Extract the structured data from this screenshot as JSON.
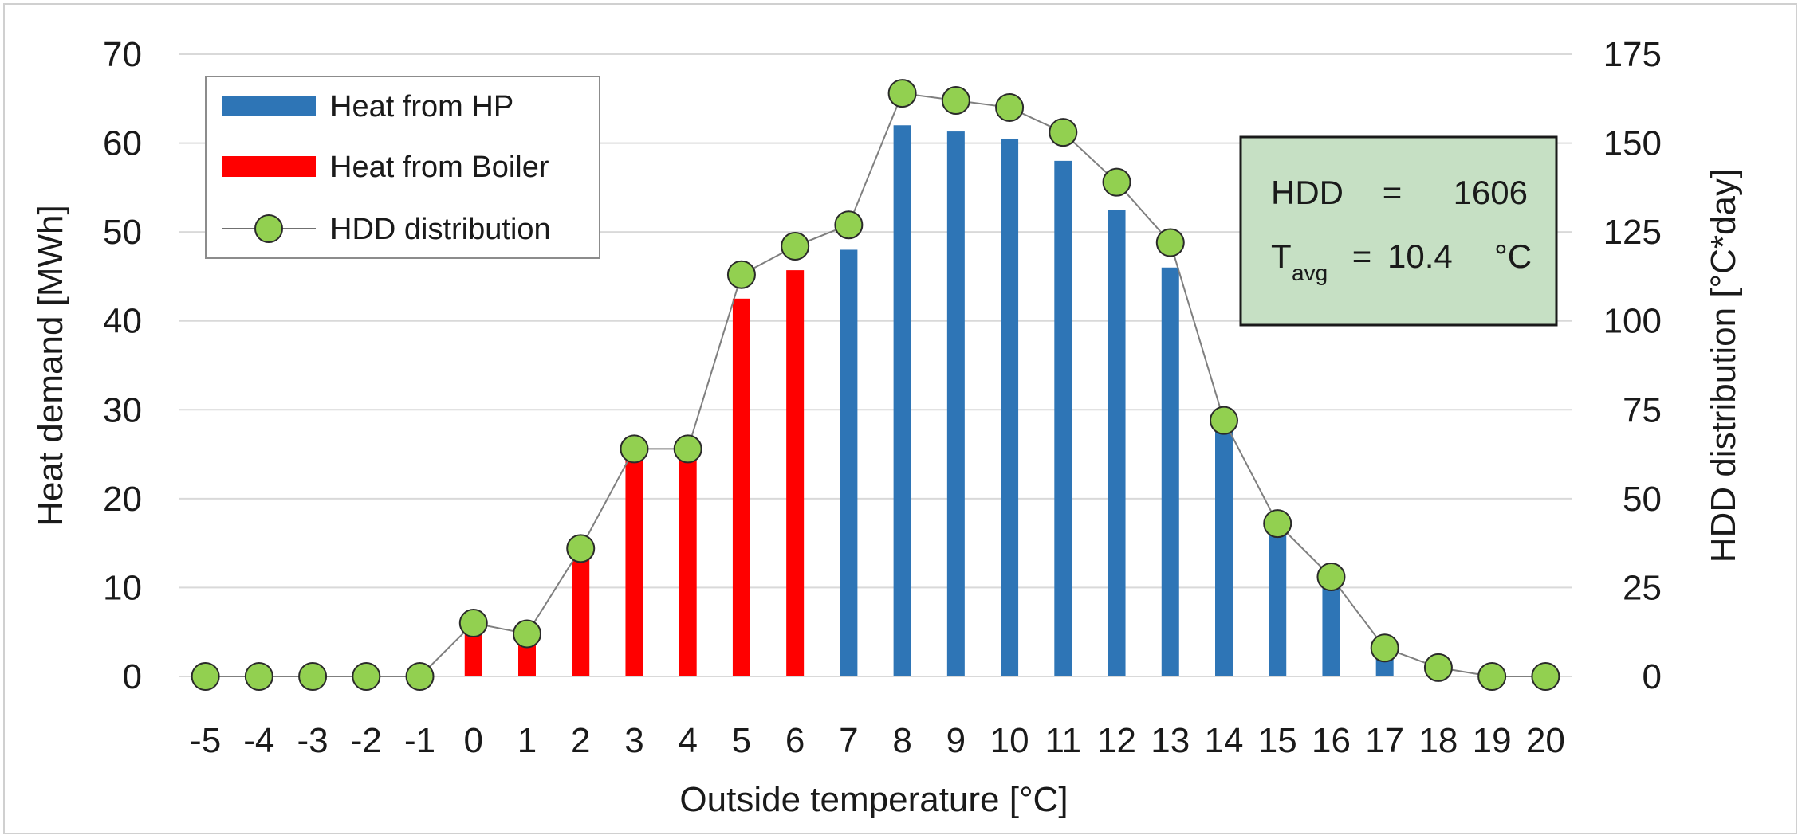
{
  "chart_data": {
    "type": "bar",
    "categories": [
      "-5",
      "-4",
      "-3",
      "-2",
      "-1",
      "0",
      "1",
      "2",
      "3",
      "4",
      "5",
      "6",
      "7",
      "8",
      "9",
      "10",
      "11",
      "12",
      "13",
      "14",
      "15",
      "16",
      "17",
      "18",
      "19",
      "20"
    ],
    "xlabel": "Outside temperature [°C]",
    "ylabel": "Heat demand [MWh]",
    "y2label": "HDD distribution [°C*day]",
    "ylim": [
      0,
      70
    ],
    "y2lim": [
      0,
      175
    ],
    "yticks": [
      "0",
      "10",
      "20",
      "30",
      "40",
      "50",
      "60",
      "70"
    ],
    "y2ticks": [
      "0",
      "25",
      "50",
      "75",
      "100",
      "125",
      "150",
      "175"
    ],
    "grid": true,
    "legend_position": "top-left",
    "series": [
      {
        "name": "Heat from HP",
        "kind": "bar",
        "axis": "left",
        "color": "#2e75b6",
        "values": [
          0,
          0,
          0,
          0,
          0,
          0,
          0,
          0,
          0,
          0,
          0,
          0,
          48,
          62,
          61.3,
          60.5,
          58,
          52.5,
          46,
          28,
          16,
          10.5,
          2,
          0,
          0,
          0
        ]
      },
      {
        "name": "Heat from Boiler",
        "kind": "bar",
        "axis": "left",
        "color": "#ff0000",
        "values": [
          0,
          0,
          0,
          0,
          0,
          6,
          3.5,
          13.5,
          24.5,
          24.5,
          42.5,
          45.7,
          0,
          0,
          0,
          0,
          0,
          0,
          0,
          0,
          0,
          0,
          0,
          0,
          0,
          0
        ]
      },
      {
        "name": "HDD distribution",
        "kind": "line-marker",
        "axis": "right",
        "color": "#92d050",
        "values": [
          0,
          0,
          0,
          0,
          0,
          15,
          12,
          36,
          64,
          64,
          113,
          121,
          127,
          164,
          162,
          160,
          153,
          139,
          122,
          72,
          43,
          28,
          8,
          2.5,
          0,
          0
        ]
      }
    ],
    "annotation_box": {
      "hdd_label": "HDD",
      "hdd_eq": "=",
      "hdd_value": "1606",
      "tavg_label": "T",
      "tavg_sub": "avg",
      "tavg_eq": "=",
      "tavg_value": "10.4",
      "tavg_unit": "°C",
      "fill_color": "#c6e0c4"
    }
  }
}
